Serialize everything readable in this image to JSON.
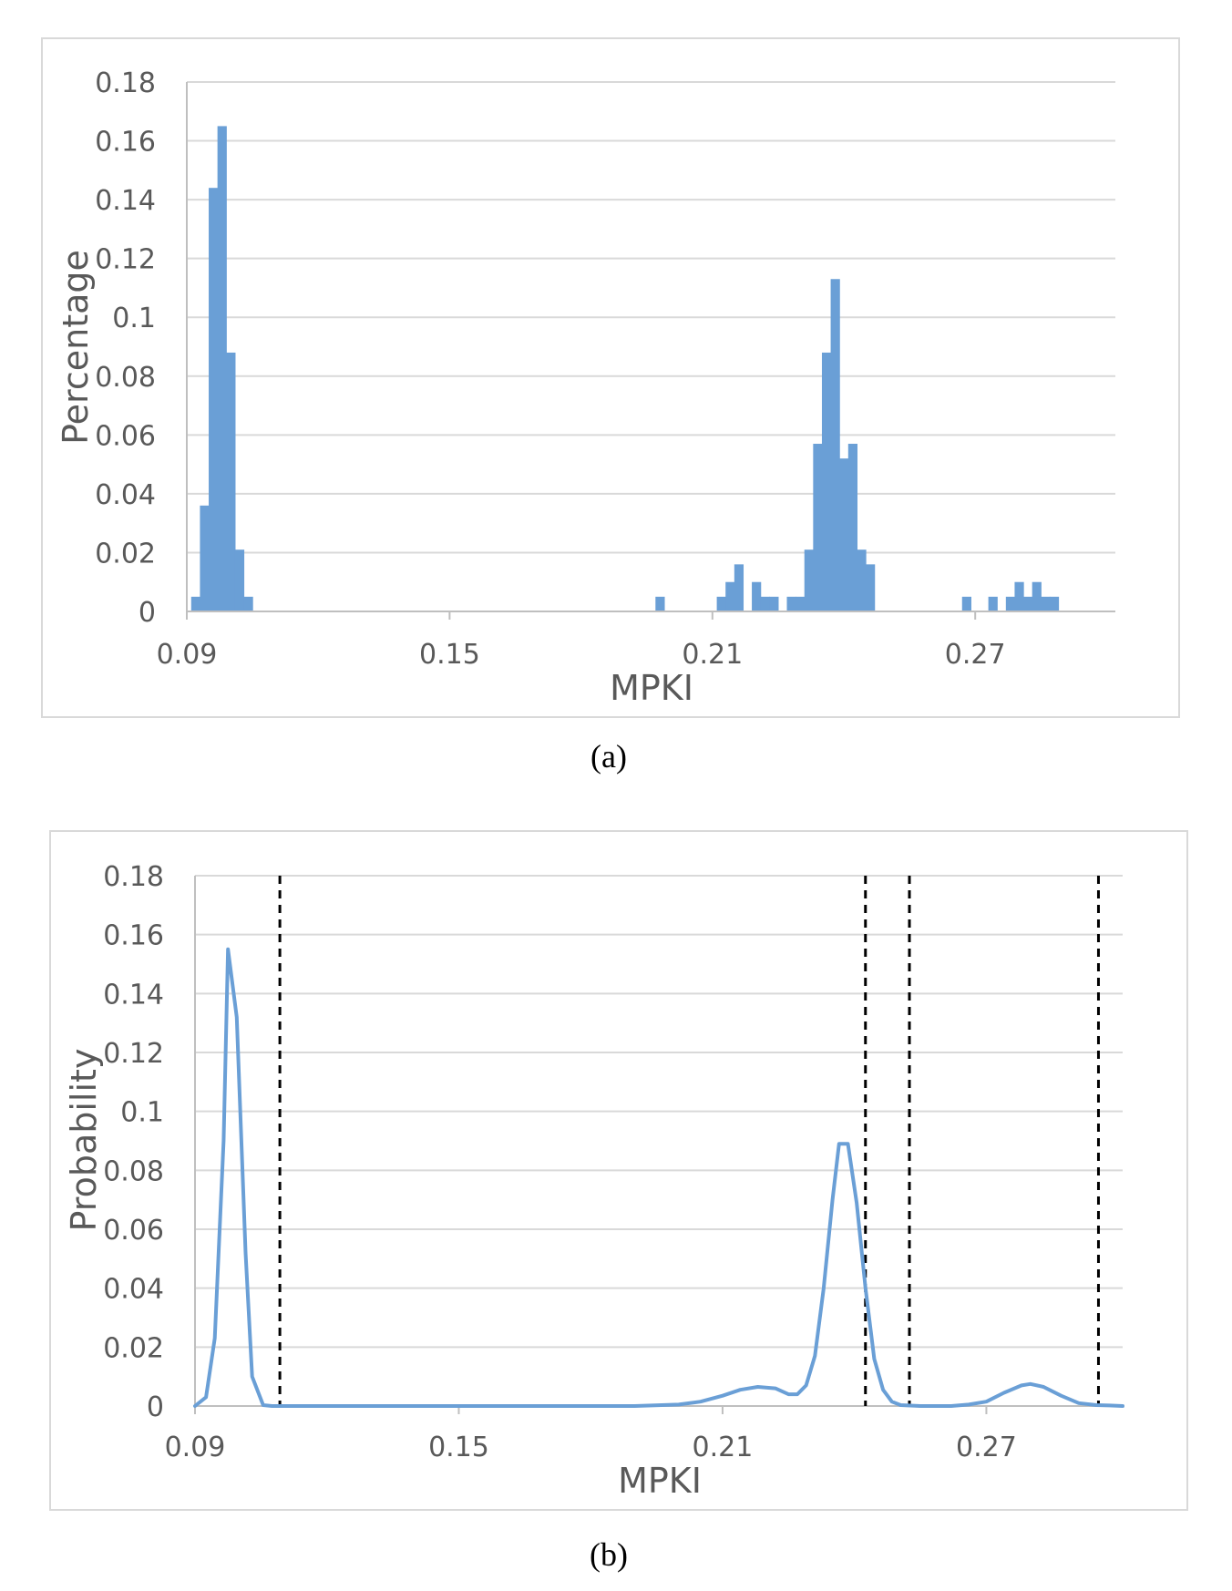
{
  "colors": {
    "series": "#6a9fd6",
    "grid": "#d9d9d9",
    "axis": "#bfbfbf",
    "dashed": "#000000"
  },
  "chart_data": [
    {
      "type": "bar",
      "caption": "(a)",
      "xlabel": "MPKI",
      "ylabel": "Percentage",
      "xlim": [
        0.09,
        0.302
      ],
      "ylim": [
        0,
        0.18
      ],
      "x_ticks": [
        "0.09",
        "0.15",
        "0.21",
        "0.27"
      ],
      "y_ticks": [
        "0",
        "0.02",
        "0.04",
        "0.06",
        "0.08",
        "0.1",
        "0.12",
        "0.14",
        "0.16",
        "0.18"
      ],
      "bin_width": 0.002,
      "bins": [
        {
          "x": 0.092,
          "y": 0.005
        },
        {
          "x": 0.094,
          "y": 0.036
        },
        {
          "x": 0.096,
          "y": 0.144
        },
        {
          "x": 0.098,
          "y": 0.165
        },
        {
          "x": 0.1,
          "y": 0.088
        },
        {
          "x": 0.102,
          "y": 0.021
        },
        {
          "x": 0.104,
          "y": 0.005
        },
        {
          "x": 0.198,
          "y": 0.005
        },
        {
          "x": 0.212,
          "y": 0.005
        },
        {
          "x": 0.214,
          "y": 0.01
        },
        {
          "x": 0.216,
          "y": 0.016
        },
        {
          "x": 0.22,
          "y": 0.01
        },
        {
          "x": 0.222,
          "y": 0.005
        },
        {
          "x": 0.224,
          "y": 0.005
        },
        {
          "x": 0.228,
          "y": 0.005
        },
        {
          "x": 0.23,
          "y": 0.005
        },
        {
          "x": 0.232,
          "y": 0.021
        },
        {
          "x": 0.234,
          "y": 0.057
        },
        {
          "x": 0.236,
          "y": 0.088
        },
        {
          "x": 0.238,
          "y": 0.113
        },
        {
          "x": 0.24,
          "y": 0.052
        },
        {
          "x": 0.242,
          "y": 0.057
        },
        {
          "x": 0.244,
          "y": 0.021
        },
        {
          "x": 0.246,
          "y": 0.016
        },
        {
          "x": 0.268,
          "y": 0.005
        },
        {
          "x": 0.274,
          "y": 0.005
        },
        {
          "x": 0.278,
          "y": 0.005
        },
        {
          "x": 0.28,
          "y": 0.01
        },
        {
          "x": 0.282,
          "y": 0.005
        },
        {
          "x": 0.284,
          "y": 0.01
        },
        {
          "x": 0.286,
          "y": 0.005
        },
        {
          "x": 0.288,
          "y": 0.005
        }
      ]
    },
    {
      "type": "line",
      "caption": "(b)",
      "xlabel": "MPKI",
      "ylabel": "Probability",
      "xlim": [
        0.09,
        0.301
      ],
      "ylim": [
        0,
        0.18
      ],
      "x_ticks": [
        "0.09",
        "0.15",
        "0.21",
        "0.27"
      ],
      "y_ticks": [
        "0",
        "0.02",
        "0.04",
        "0.06",
        "0.08",
        "0.1",
        "0.12",
        "0.14",
        "0.16",
        "0.18"
      ],
      "series": [
        {
          "x": [
            0.09,
            0.0925,
            0.0945,
            0.0965,
            0.0975,
            0.0995,
            0.1015,
            0.103,
            0.1055,
            0.1075,
            0.112,
            0.15,
            0.19,
            0.2,
            0.205,
            0.21,
            0.214,
            0.218,
            0.222,
            0.225,
            0.227,
            0.229,
            0.231,
            0.233,
            0.235,
            0.2365,
            0.2385,
            0.2405,
            0.2425,
            0.2445,
            0.2465,
            0.2485,
            0.2505,
            0.255,
            0.262,
            0.266,
            0.27,
            0.274,
            0.278,
            0.28,
            0.283,
            0.287,
            0.291,
            0.295,
            0.298,
            0.301
          ],
          "y": [
            0,
            0.003,
            0.023,
            0.09,
            0.155,
            0.132,
            0.052,
            0.01,
            0.0003,
            0,
            0,
            0,
            0,
            0.0005,
            0.0015,
            0.0035,
            0.0055,
            0.0065,
            0.006,
            0.004,
            0.004,
            0.007,
            0.017,
            0.04,
            0.07,
            0.089,
            0.089,
            0.069,
            0.04,
            0.016,
            0.0055,
            0.0015,
            0.0003,
            0,
            0,
            0.0005,
            0.0015,
            0.0045,
            0.007,
            0.0075,
            0.0065,
            0.0035,
            0.001,
            0.0003,
            0.0002,
            0
          ]
        }
      ],
      "vlines_x": [
        0.1093,
        0.2425,
        0.2525,
        0.2955
      ]
    }
  ]
}
